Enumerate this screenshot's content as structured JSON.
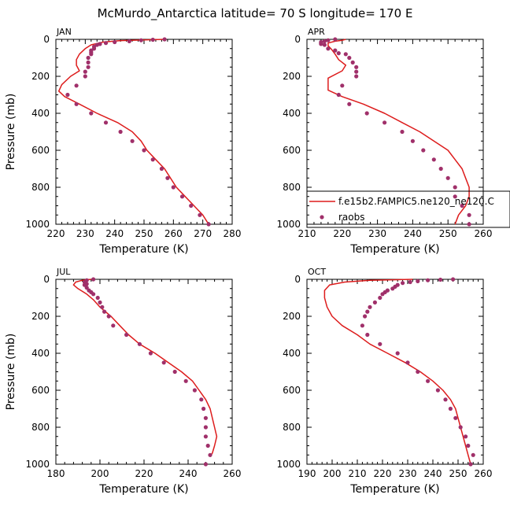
{
  "suptitle": "McMurdo_Antarctica  latitude= 70 S longitude= 170 E",
  "colors": {
    "model": "#dd1c1c",
    "obs": "#a0306a",
    "axis": "#000000"
  },
  "legend": {
    "model_label": "f.e15b2.FAMPIC5.ne120_ne120.C",
    "obs_label": "raobs"
  },
  "chart_data": [
    {
      "type": "line",
      "title": "JAN",
      "xlabel": "Temperature (K)",
      "ylabel": "Pressure (mb)",
      "xlim": [
        220,
        280
      ],
      "ylim": [
        1000,
        0
      ],
      "xticks": [
        "220",
        "230",
        "240",
        "250",
        "260",
        "270",
        "280"
      ],
      "yticks": [
        "0",
        "200",
        "400",
        "600",
        "800",
        "1000"
      ],
      "series": [
        {
          "name": "f.e15b2.FAMPIC5.ne120_ne120.C",
          "kind": "line",
          "points": [
            [
              257,
              0
            ],
            [
              250,
              3
            ],
            [
              242,
              7
            ],
            [
              236,
              15
            ],
            [
              232,
              30
            ],
            [
              230,
              50
            ],
            [
              228,
              80
            ],
            [
              227,
              110
            ],
            [
              227,
              140
            ],
            [
              228,
              170
            ],
            [
              225,
              200
            ],
            [
              222,
              245
            ],
            [
              221,
              280
            ],
            [
              223,
              310
            ],
            [
              228,
              350
            ],
            [
              234,
              400
            ],
            [
              241,
              450
            ],
            [
              246,
              500
            ],
            [
              249,
              550
            ],
            [
              251,
              600
            ],
            [
              254,
              650
            ],
            [
              257,
              700
            ],
            [
              259,
              750
            ],
            [
              261,
              800
            ],
            [
              264,
              850
            ],
            [
              267,
              900
            ],
            [
              270,
              950
            ],
            [
              272,
              1000
            ]
          ]
        },
        {
          "name": "raobs",
          "kind": "scatter",
          "points": [
            [
              257,
              0
            ],
            [
              253,
              2
            ],
            [
              249,
              5
            ],
            [
              245,
              10
            ],
            [
              240,
              15
            ],
            [
              237,
              20
            ],
            [
              235,
              25
            ],
            [
              234,
              30
            ],
            [
              233,
              40
            ],
            [
              233,
              50
            ],
            [
              232,
              60
            ],
            [
              232,
              70
            ],
            [
              232,
              80
            ],
            [
              231,
              100
            ],
            [
              231,
              125
            ],
            [
              231,
              150
            ],
            [
              230,
              175
            ],
            [
              230,
              200
            ],
            [
              227,
              250
            ],
            [
              224,
              300
            ],
            [
              227,
              350
            ],
            [
              232,
              400
            ],
            [
              237,
              450
            ],
            [
              242,
              500
            ],
            [
              246,
              550
            ],
            [
              250,
              600
            ],
            [
              253,
              650
            ],
            [
              256,
              700
            ],
            [
              258,
              750
            ],
            [
              260,
              800
            ],
            [
              263,
              850
            ],
            [
              266,
              900
            ],
            [
              269,
              950
            ],
            [
              272,
              1000
            ]
          ]
        }
      ]
    },
    {
      "type": "line",
      "title": "APR",
      "xlabel": "Temperature (K)",
      "ylabel": "",
      "xlim": [
        210,
        260
      ],
      "ylim": [
        1000,
        0
      ],
      "xticks": [
        "210",
        "220",
        "230",
        "240",
        "250",
        "260"
      ],
      "yticks": [
        "0",
        "200",
        "400",
        "600",
        "800",
        "1000"
      ],
      "series": [
        {
          "name": "f.e15b2.FAMPIC5.ne120_ne120.C",
          "kind": "line",
          "points": [
            [
              221,
              0
            ],
            [
              220,
              5
            ],
            [
              218,
              10
            ],
            [
              216,
              20
            ],
            [
              216,
              35
            ],
            [
              217,
              55
            ],
            [
              218,
              80
            ],
            [
              219,
              110
            ],
            [
              221,
              140
            ],
            [
              220,
              170
            ],
            [
              216,
              210
            ],
            [
              216,
              245
            ],
            [
              216,
              275
            ],
            [
              220,
              310
            ],
            [
              226,
              350
            ],
            [
              232,
              400
            ],
            [
              237,
              450
            ],
            [
              242,
              500
            ],
            [
              246,
              550
            ],
            [
              250,
              600
            ],
            [
              252,
              650
            ],
            [
              254,
              700
            ],
            [
              255,
              750
            ],
            [
              256,
              800
            ],
            [
              256,
              850
            ],
            [
              255,
              900
            ],
            [
              253,
              950
            ],
            [
              252,
              1000
            ]
          ]
        },
        {
          "name": "raobs",
          "kind": "scatter",
          "points": [
            [
              218,
              0
            ],
            [
              216,
              5
            ],
            [
              215,
              10
            ],
            [
              214,
              15
            ],
            [
              214,
              20
            ],
            [
              214,
              25
            ],
            [
              215,
              30
            ],
            [
              216,
              50
            ],
            [
              218,
              60
            ],
            [
              219,
              75
            ],
            [
              221,
              80
            ],
            [
              222,
              100
            ],
            [
              223,
              125
            ],
            [
              224,
              150
            ],
            [
              224,
              175
            ],
            [
              224,
              200
            ],
            [
              220,
              250
            ],
            [
              219,
              300
            ],
            [
              222,
              350
            ],
            [
              227,
              400
            ],
            [
              232,
              450
            ],
            [
              237,
              500
            ],
            [
              240,
              550
            ],
            [
              243,
              600
            ],
            [
              246,
              650
            ],
            [
              248,
              700
            ],
            [
              250,
              750
            ],
            [
              252,
              800
            ],
            [
              252,
              850
            ],
            [
              254,
              900
            ],
            [
              256,
              950
            ],
            [
              256,
              1000
            ]
          ]
        }
      ]
    },
    {
      "type": "line",
      "title": "JUL",
      "xlabel": "Temperature (K)",
      "ylabel": "Pressure (mb)",
      "xlim": [
        180,
        260
      ],
      "ylim": [
        1000,
        0
      ],
      "xticks": [
        "180",
        "200",
        "220",
        "240",
        "260"
      ],
      "yticks": [
        "0",
        "200",
        "400",
        "600",
        "800",
        "1000"
      ],
      "series": [
        {
          "name": "f.e15b2.FAMPIC5.ne120_ne120.C",
          "kind": "line",
          "points": [
            [
              196,
              0
            ],
            [
              192,
              5
            ],
            [
              189,
              15
            ],
            [
              188,
              30
            ],
            [
              190,
              50
            ],
            [
              194,
              80
            ],
            [
              197,
              110
            ],
            [
              200,
              150
            ],
            [
              205,
              200
            ],
            [
              209,
              250
            ],
            [
              213,
              300
            ],
            [
              218,
              350
            ],
            [
              225,
              400
            ],
            [
              231,
              450
            ],
            [
              237,
              500
            ],
            [
              242,
              550
            ],
            [
              245,
              600
            ],
            [
              248,
              650
            ],
            [
              250,
              700
            ],
            [
              251,
              750
            ],
            [
              252,
              800
            ],
            [
              253,
              850
            ],
            [
              252,
              900
            ],
            [
              251,
              940
            ],
            [
              250,
              960
            ]
          ]
        },
        {
          "name": "raobs",
          "kind": "scatter",
          "points": [
            [
              197,
              0
            ],
            [
              194,
              5
            ],
            [
              193,
              15
            ],
            [
              194,
              25
            ],
            [
              193,
              30
            ],
            [
              194,
              45
            ],
            [
              195,
              60
            ],
            [
              196,
              70
            ],
            [
              197,
              80
            ],
            [
              199,
              100
            ],
            [
              200,
              125
            ],
            [
              201,
              150
            ],
            [
              202,
              175
            ],
            [
              204,
              200
            ],
            [
              206,
              250
            ],
            [
              212,
              300
            ],
            [
              218,
              350
            ],
            [
              223,
              400
            ],
            [
              229,
              450
            ],
            [
              234,
              500
            ],
            [
              239,
              550
            ],
            [
              243,
              600
            ],
            [
              246,
              650
            ],
            [
              247,
              700
            ],
            [
              248,
              750
            ],
            [
              248,
              800
            ],
            [
              248,
              850
            ],
            [
              249,
              900
            ],
            [
              250,
              950
            ],
            [
              248,
              1000
            ]
          ]
        }
      ]
    },
    {
      "type": "line",
      "title": "OCT",
      "xlabel": "Temperature (K)",
      "ylabel": "",
      "xlim": [
        190,
        260
      ],
      "ylim": [
        1000,
        0
      ],
      "xticks": [
        "190",
        "200",
        "210",
        "220",
        "230",
        "240",
        "250",
        "260"
      ],
      "yticks": [
        "0",
        "200",
        "400",
        "600",
        "800",
        "1000"
      ],
      "series": [
        {
          "name": "f.e15b2.FAMPIC5.ne120_ne120.C",
          "kind": "line",
          "points": [
            [
              232,
              0
            ],
            [
              215,
              5
            ],
            [
              205,
              15
            ],
            [
              199,
              30
            ],
            [
              197,
              60
            ],
            [
              197,
              100
            ],
            [
              198,
              150
            ],
            [
              200,
              200
            ],
            [
              204,
              250
            ],
            [
              210,
              300
            ],
            [
              215,
              350
            ],
            [
              222,
              400
            ],
            [
              229,
              450
            ],
            [
              235,
              500
            ],
            [
              240,
              550
            ],
            [
              244,
              600
            ],
            [
              247,
              650
            ],
            [
              249,
              700
            ],
            [
              250,
              750
            ],
            [
              251,
              800
            ],
            [
              252,
              850
            ],
            [
              253,
              900
            ],
            [
              254,
              950
            ],
            [
              255,
              1000
            ]
          ]
        },
        {
          "name": "raobs",
          "kind": "scatter",
          "points": [
            [
              248,
              0
            ],
            [
              243,
              2
            ],
            [
              238,
              5
            ],
            [
              234,
              10
            ],
            [
              231,
              15
            ],
            [
              228,
              20
            ],
            [
              226,
              30
            ],
            [
              225,
              40
            ],
            [
              224,
              50
            ],
            [
              222,
              60
            ],
            [
              221,
              70
            ],
            [
              220,
              80
            ],
            [
              219,
              100
            ],
            [
              217,
              125
            ],
            [
              215,
              150
            ],
            [
              214,
              175
            ],
            [
              213,
              200
            ],
            [
              212,
              250
            ],
            [
              214,
              300
            ],
            [
              219,
              350
            ],
            [
              226,
              400
            ],
            [
              230,
              450
            ],
            [
              234,
              500
            ],
            [
              238,
              550
            ],
            [
              242,
              600
            ],
            [
              245,
              650
            ],
            [
              247,
              700
            ],
            [
              249,
              750
            ],
            [
              251,
              800
            ],
            [
              253,
              850
            ],
            [
              254,
              900
            ],
            [
              256,
              950
            ],
            [
              255,
              1000
            ]
          ]
        }
      ]
    }
  ]
}
